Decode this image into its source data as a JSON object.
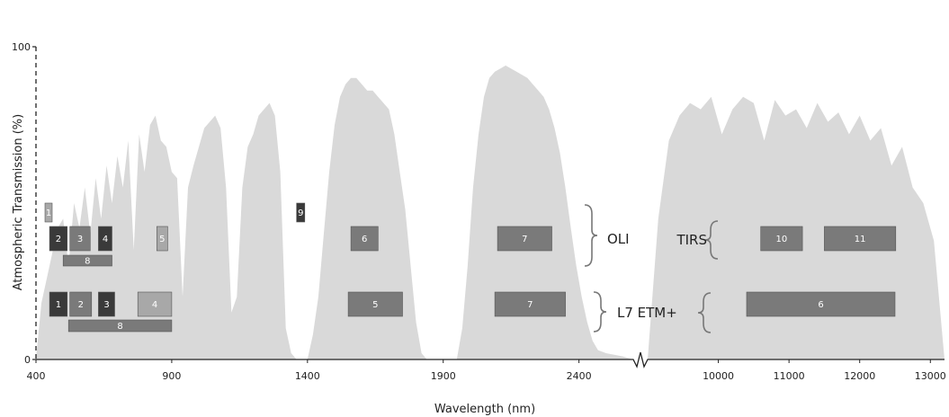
{
  "chart_data": {
    "type": "area",
    "ylabel": "Atmospheric Transmission (%)",
    "xlabel": "Wavelength (nm)",
    "ylim": [
      0,
      100
    ],
    "y_ticks": [
      "0",
      "100"
    ],
    "x_segments": [
      {
        "range": [
          400,
          2600
        ],
        "ticks": [
          "400",
          "900",
          "1400",
          "1900",
          "2400"
        ]
      },
      {
        "range": [
          9000,
          13200
        ],
        "ticks": [
          "10000",
          "11000",
          "12000",
          "13000"
        ]
      }
    ],
    "colors": {
      "transmission": "#d9d9d9",
      "band_dark": "#3a3a3a",
      "band_mid": "#7a7a7a",
      "band_light": "#a8a8a8",
      "brace": "#777777"
    },
    "transmission_curve": [
      [
        400,
        0
      ],
      [
        420,
        18
      ],
      [
        450,
        30
      ],
      [
        480,
        42
      ],
      [
        500,
        45
      ],
      [
        520,
        30
      ],
      [
        540,
        50
      ],
      [
        560,
        42
      ],
      [
        580,
        55
      ],
      [
        600,
        40
      ],
      [
        620,
        58
      ],
      [
        640,
        45
      ],
      [
        660,
        62
      ],
      [
        680,
        50
      ],
      [
        700,
        65
      ],
      [
        720,
        55
      ],
      [
        740,
        70
      ],
      [
        760,
        35
      ],
      [
        780,
        72
      ],
      [
        800,
        60
      ],
      [
        820,
        75
      ],
      [
        840,
        78
      ],
      [
        860,
        70
      ],
      [
        880,
        68
      ],
      [
        900,
        60
      ],
      [
        920,
        58
      ],
      [
        940,
        20
      ],
      [
        960,
        55
      ],
      [
        980,
        62
      ],
      [
        1000,
        68
      ],
      [
        1020,
        74
      ],
      [
        1040,
        76
      ],
      [
        1060,
        78
      ],
      [
        1080,
        74
      ],
      [
        1100,
        55
      ],
      [
        1120,
        15
      ],
      [
        1140,
        20
      ],
      [
        1160,
        55
      ],
      [
        1180,
        68
      ],
      [
        1200,
        72
      ],
      [
        1220,
        78
      ],
      [
        1240,
        80
      ],
      [
        1260,
        82
      ],
      [
        1280,
        78
      ],
      [
        1300,
        60
      ],
      [
        1320,
        10
      ],
      [
        1340,
        2
      ],
      [
        1360,
        0
      ],
      [
        1400,
        0
      ],
      [
        1420,
        8
      ],
      [
        1440,
        20
      ],
      [
        1460,
        40
      ],
      [
        1480,
        60
      ],
      [
        1500,
        75
      ],
      [
        1520,
        84
      ],
      [
        1540,
        88
      ],
      [
        1560,
        90
      ],
      [
        1580,
        90
      ],
      [
        1600,
        88
      ],
      [
        1620,
        86
      ],
      [
        1640,
        86
      ],
      [
        1660,
        84
      ],
      [
        1680,
        82
      ],
      [
        1700,
        80
      ],
      [
        1720,
        72
      ],
      [
        1740,
        60
      ],
      [
        1760,
        48
      ],
      [
        1780,
        30
      ],
      [
        1800,
        12
      ],
      [
        1820,
        2
      ],
      [
        1840,
        0
      ],
      [
        1950,
        0
      ],
      [
        1970,
        10
      ],
      [
        1990,
        30
      ],
      [
        2010,
        55
      ],
      [
        2030,
        72
      ],
      [
        2050,
        84
      ],
      [
        2070,
        90
      ],
      [
        2090,
        92
      ],
      [
        2110,
        93
      ],
      [
        2130,
        94
      ],
      [
        2150,
        93
      ],
      [
        2170,
        92
      ],
      [
        2190,
        91
      ],
      [
        2210,
        90
      ],
      [
        2230,
        88
      ],
      [
        2250,
        86
      ],
      [
        2270,
        84
      ],
      [
        2290,
        80
      ],
      [
        2310,
        74
      ],
      [
        2330,
        66
      ],
      [
        2350,
        55
      ],
      [
        2370,
        42
      ],
      [
        2390,
        30
      ],
      [
        2410,
        20
      ],
      [
        2430,
        12
      ],
      [
        2450,
        6
      ],
      [
        2470,
        3
      ],
      [
        2500,
        2
      ],
      [
        2560,
        1
      ],
      [
        2600,
        0
      ]
    ],
    "transmission_curve_thermal": [
      [
        9000,
        0
      ],
      [
        9150,
        45
      ],
      [
        9300,
        70
      ],
      [
        9450,
        78
      ],
      [
        9600,
        82
      ],
      [
        9750,
        80
      ],
      [
        9900,
        84
      ],
      [
        10050,
        72
      ],
      [
        10200,
        80
      ],
      [
        10350,
        84
      ],
      [
        10500,
        82
      ],
      [
        10650,
        70
      ],
      [
        10800,
        83
      ],
      [
        10950,
        78
      ],
      [
        11100,
        80
      ],
      [
        11250,
        74
      ],
      [
        11400,
        82
      ],
      [
        11550,
        76
      ],
      [
        11700,
        79
      ],
      [
        11850,
        72
      ],
      [
        12000,
        78
      ],
      [
        12150,
        70
      ],
      [
        12300,
        74
      ],
      [
        12450,
        62
      ],
      [
        12600,
        68
      ],
      [
        12750,
        55
      ],
      [
        12900,
        50
      ],
      [
        13050,
        38
      ],
      [
        13200,
        0
      ]
    ],
    "groups": [
      {
        "name": "OLI",
        "bands": [
          {
            "label": "1",
            "min": 433,
            "max": 453,
            "level": 3,
            "tone": "band_light"
          },
          {
            "label": "2",
            "min": 450,
            "max": 515,
            "level": 2,
            "tone": "band_dark"
          },
          {
            "label": "3",
            "min": 525,
            "max": 600,
            "level": 2,
            "tone": "band_mid"
          },
          {
            "label": "4",
            "min": 630,
            "max": 680,
            "level": 2,
            "tone": "band_dark"
          },
          {
            "label": "5",
            "min": 845,
            "max": 885,
            "level": 2,
            "tone": "band_light"
          },
          {
            "label": "8",
            "min": 500,
            "max": 680,
            "level": 1,
            "tone": "band_mid"
          },
          {
            "label": "9",
            "min": 1360,
            "max": 1390,
            "level": 3,
            "tone": "band_dark"
          },
          {
            "label": "6",
            "min": 1560,
            "max": 1660,
            "level": 2,
            "tone": "band_mid"
          },
          {
            "label": "7",
            "min": 2100,
            "max": 2300,
            "level": 2,
            "tone": "band_mid"
          }
        ]
      },
      {
        "name": "L7 ETM+",
        "bands": [
          {
            "label": "1",
            "min": 450,
            "max": 515,
            "level": 2,
            "tone": "band_dark"
          },
          {
            "label": "2",
            "min": 525,
            "max": 605,
            "level": 2,
            "tone": "band_mid"
          },
          {
            "label": "3",
            "min": 630,
            "max": 690,
            "level": 2,
            "tone": "band_dark"
          },
          {
            "label": "4",
            "min": 775,
            "max": 900,
            "level": 2,
            "tone": "band_light"
          },
          {
            "label": "8",
            "min": 520,
            "max": 900,
            "level": 1,
            "tone": "band_mid"
          },
          {
            "label": "5",
            "min": 1550,
            "max": 1750,
            "level": 2,
            "tone": "band_mid"
          },
          {
            "label": "7",
            "min": 2090,
            "max": 2350,
            "level": 2,
            "tone": "band_mid"
          },
          {
            "label": "6",
            "min": 10400,
            "max": 12500,
            "level": 2,
            "tone": "band_mid"
          }
        ]
      },
      {
        "name": "TIRS",
        "bands": [
          {
            "label": "10",
            "min": 10600,
            "max": 11190,
            "level": 2,
            "tone": "band_mid"
          },
          {
            "label": "11",
            "min": 11500,
            "max": 12510,
            "level": 2,
            "tone": "band_mid"
          }
        ]
      }
    ],
    "grid": false,
    "legend": "none"
  }
}
